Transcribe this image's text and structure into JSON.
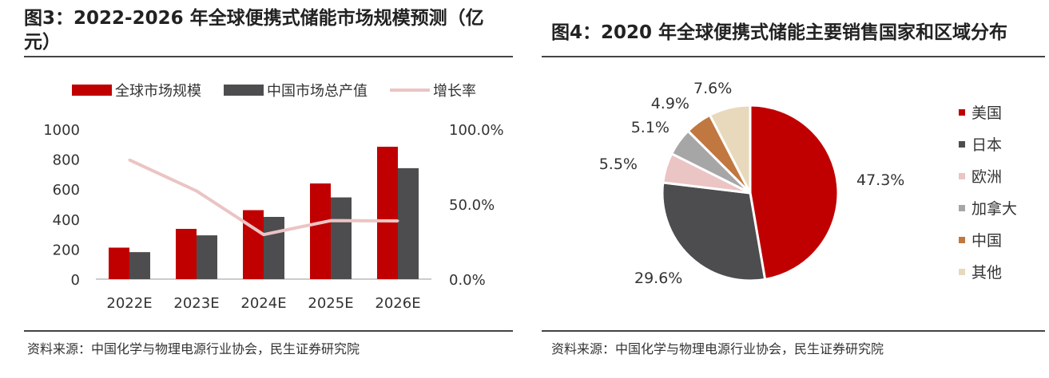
{
  "left": {
    "title": "图3：2022-2026 年全球便携式储能市场规模预测（亿元）",
    "source": "资料来源：中国化学与物理电源行业协会，民生证券研究院",
    "chart_data": {
      "type": "bar",
      "categories": [
        "2022E",
        "2023E",
        "2024E",
        "2025E",
        "2026E"
      ],
      "series": [
        {
          "name": "全球市场规模",
          "type": "bar",
          "axis": "left",
          "color": "#C00000",
          "values": [
            210,
            335,
            460,
            638,
            883
          ]
        },
        {
          "name": "中国市场总产值",
          "type": "bar",
          "axis": "left",
          "color": "#4D4D4F",
          "values": [
            180,
            292,
            415,
            545,
            740
          ]
        },
        {
          "name": "增长率",
          "type": "line",
          "axis": "right",
          "color": "#EBC4C4",
          "values": [
            0.795,
            0.588,
            0.297,
            0.39,
            0.388
          ]
        }
      ],
      "y_left": {
        "min": 0,
        "max": 1000,
        "ticks": [
          "0",
          "200",
          "400",
          "600",
          "800",
          "1000"
        ]
      },
      "y_right": {
        "min": 0,
        "max": 1,
        "ticks": [
          "0.0%",
          "50.0%",
          "100.0%"
        ]
      },
      "legend": "top",
      "grid": false
    }
  },
  "right": {
    "title": "图4：2020 年全球便携式储能主要销售国家和区域分布",
    "source": "资料来源：中国化学与物理电源行业协会，民生证券研究院",
    "chart_data": {
      "type": "pie",
      "slices": [
        {
          "name": "美国",
          "value": 47.3,
          "label": "47.3%",
          "color": "#C00000"
        },
        {
          "name": "日本",
          "value": 29.6,
          "label": "29.6%",
          "color": "#4D4D4F"
        },
        {
          "name": "欧洲",
          "value": 5.5,
          "label": "5.5%",
          "color": "#EBC4C4"
        },
        {
          "name": "加拿大",
          "value": 5.1,
          "label": "5.1%",
          "color": "#A6A6A6"
        },
        {
          "name": "中国",
          "value": 4.9,
          "label": "4.9%",
          "color": "#C07840"
        },
        {
          "name": "其他",
          "value": 7.6,
          "label": "7.6%",
          "color": "#E8D9BC"
        }
      ],
      "legend": "right",
      "start": "top",
      "direction": "clockwise"
    }
  }
}
